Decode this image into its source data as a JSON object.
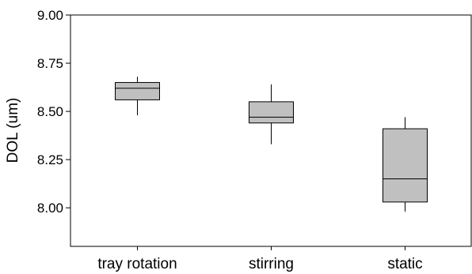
{
  "chart_data": {
    "type": "boxplot",
    "ylabel": "DOL (um)",
    "ylim": [
      7.8,
      9.0
    ],
    "yticks": [
      "8.00",
      "8.25",
      "8.50",
      "8.75",
      "9.00"
    ],
    "categories": [
      "tray rotation",
      "stirring",
      "static"
    ],
    "boxes": [
      {
        "min": 8.48,
        "q1": 8.56,
        "median": 8.62,
        "q3": 8.65,
        "max": 8.68
      },
      {
        "min": 8.33,
        "q1": 8.44,
        "median": 8.47,
        "q3": 8.55,
        "max": 8.64
      },
      {
        "min": 7.98,
        "q1": 8.03,
        "median": 8.15,
        "q3": 8.41,
        "max": 8.47
      }
    ],
    "box_color": "#c0c0c0",
    "grid": false,
    "legend": "none"
  }
}
